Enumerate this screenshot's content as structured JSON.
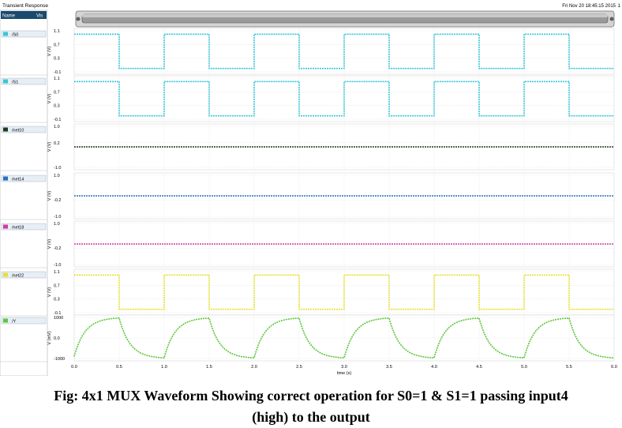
{
  "window": {
    "title": "Transient Response",
    "timestamp": "Fri Nov 20 18:45:15 2015",
    "timestamp_suffix": "1",
    "sidebar_header_name": "Name",
    "sidebar_header_vis": "Vis"
  },
  "caption": {
    "line1": "Fig: 4x1 MUX Waveform Showing correct operation for S0=1 & S1=1 passing input4",
    "line2": "(high) to the output"
  },
  "chart_data": {
    "type": "line",
    "x_axis": {
      "label": "time (s)",
      "range": [
        0.0,
        6.0
      ],
      "ticks": [
        "0.0",
        "0.5",
        "1.0",
        "1.5",
        "2.0",
        "2.5",
        "3.0",
        "3.5",
        "4.0",
        "4.5",
        "5.0",
        "5.5",
        "6.0"
      ]
    },
    "grid": true,
    "strips": [
      {
        "name": "/S0",
        "color": "#36c7d8",
        "ylabel": "V (V)",
        "yticks": [
          "1.1",
          "0.7",
          "0.3",
          "-0.1"
        ],
        "yrange": [
          -0.1,
          1.1
        ],
        "waveform": "square",
        "levels": [
          1.0,
          0.0
        ],
        "period": 1.0,
        "high_first": true
      },
      {
        "name": "/S1",
        "color": "#36c7d8",
        "ylabel": "V (V)",
        "yticks": [
          "1.1",
          "0.7",
          "0.3",
          "-0.1"
        ],
        "yrange": [
          -0.1,
          1.1
        ],
        "waveform": "square",
        "levels": [
          1.0,
          0.0
        ],
        "period": 1.0,
        "high_first": true
      },
      {
        "name": "/net10",
        "color": "#1a3d1a",
        "ylabel": "V (V)",
        "yticks": [
          "1.0",
          "0.2",
          "-1.0"
        ],
        "yrange": [
          -1.0,
          1.0
        ],
        "waveform": "constant",
        "value": 0.0
      },
      {
        "name": "/net14",
        "color": "#2a6fc0",
        "ylabel": "V (V)",
        "yticks": [
          "1.0",
          "-0.2",
          "-1.0"
        ],
        "yrange": [
          -1.0,
          1.0
        ],
        "waveform": "constant",
        "value": 0.0
      },
      {
        "name": "/net18",
        "color": "#d43aa0",
        "ylabel": "V (V)",
        "yticks": [
          "1.0",
          "-0.2",
          "-1.0"
        ],
        "yrange": [
          -1.0,
          1.0
        ],
        "waveform": "constant",
        "value": 0.0
      },
      {
        "name": "/net22",
        "color": "#e8e030",
        "ylabel": "V (V)",
        "yticks": [
          "1.1",
          "0.7",
          "0.3",
          "-0.1"
        ],
        "yrange": [
          -0.1,
          1.1
        ],
        "waveform": "square",
        "levels": [
          1.0,
          0.0
        ],
        "period": 1.0,
        "high_first": true
      },
      {
        "name": "/Y",
        "color": "#5cc83a",
        "ylabel": "V (mV)",
        "yticks": [
          "1000",
          "0.0",
          "-1000"
        ],
        "yrange": [
          -1000,
          1000
        ],
        "waveform": "rc",
        "levels": [
          1000,
          -1000
        ],
        "period": 1.0,
        "start": -900
      }
    ]
  }
}
